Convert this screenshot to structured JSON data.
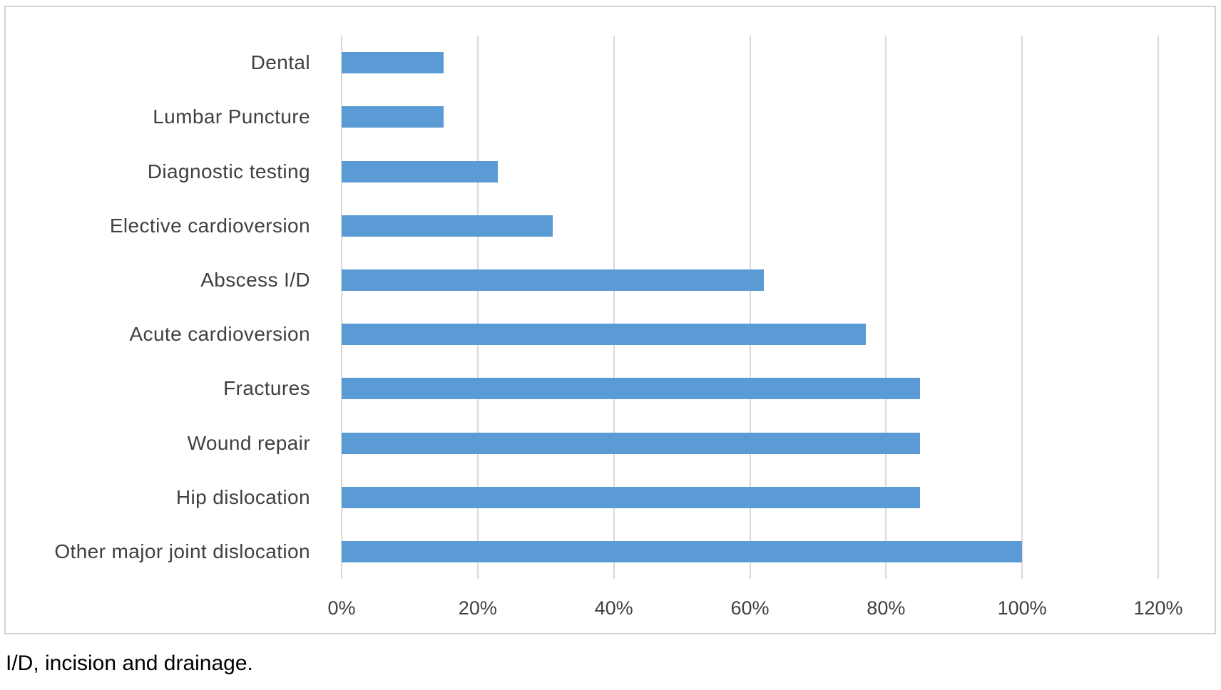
{
  "figure": {
    "footnote": "I/D, incision and drainage."
  },
  "chart_data": {
    "type": "bar",
    "orientation": "horizontal",
    "title": "",
    "xlabel": "",
    "ylabel": "",
    "categories": [
      "Dental",
      "Lumbar Puncture",
      "Diagnostic testing",
      "Elective cardioversion",
      "Abscess I/D",
      "Acute cardioversion",
      "Fractures",
      "Wound repair",
      "Hip dislocation",
      "Other major joint dislocation"
    ],
    "values": [
      15,
      15,
      23,
      31,
      62,
      77,
      85,
      85,
      85,
      100
    ],
    "unit": "%",
    "xlim": [
      0,
      120
    ],
    "xticks": [
      0,
      20,
      40,
      60,
      80,
      100,
      120
    ],
    "xtick_labels": [
      "0%",
      "20%",
      "40%",
      "60%",
      "80%",
      "100%",
      "120%"
    ],
    "grid": "vertical-gridlines-on",
    "legend": "none",
    "colors": {
      "bar": "#5B9BD5",
      "gridline": "#D9D9D9",
      "frame_border": "#D2D2D2",
      "axis_text": "#404040",
      "footnote_text": "#000000",
      "background": "#FFFFFF"
    }
  }
}
